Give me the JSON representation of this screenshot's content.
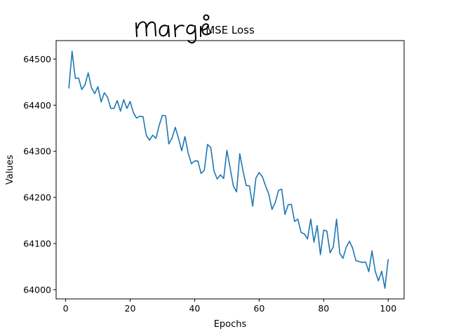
{
  "chart_data": {
    "type": "line",
    "title": "MSE Loss",
    "xlabel": "Epochs",
    "ylabel": "Values",
    "xlim": [
      -2.95,
      104.95
    ],
    "ylim": [
      63980,
      64540
    ],
    "xticks": [
      0,
      20,
      40,
      60,
      80,
      100
    ],
    "yticks": [
      64000,
      64100,
      64200,
      64300,
      64400,
      64500
    ],
    "grid": false,
    "series": [
      {
        "color": "#1f77b4",
        "x": [
          1,
          2,
          3,
          4,
          5,
          6,
          7,
          8,
          9,
          10,
          11,
          12,
          13,
          14,
          15,
          16,
          17,
          18,
          19,
          20,
          21,
          22,
          23,
          24,
          25,
          26,
          27,
          28,
          29,
          30,
          31,
          32,
          33,
          34,
          35,
          36,
          37,
          38,
          39,
          40,
          41,
          42,
          43,
          44,
          45,
          46,
          47,
          48,
          49,
          50,
          51,
          52,
          53,
          54,
          55,
          56,
          57,
          58,
          59,
          60,
          61,
          62,
          63,
          64,
          65,
          66,
          67,
          68,
          69,
          70,
          71,
          72,
          73,
          74,
          75,
          76,
          77,
          78,
          79,
          80,
          81,
          82,
          83,
          84,
          85,
          86,
          87,
          88,
          89,
          90,
          91,
          92,
          93,
          94,
          95,
          96,
          97,
          98,
          99,
          100
        ],
        "values": [
          64437,
          64517,
          64458,
          64459,
          64434,
          64444,
          64470,
          64438,
          64425,
          64440,
          64407,
          64427,
          64417,
          64393,
          64393,
          64410,
          64387,
          64412,
          64393,
          64408,
          64384,
          64372,
          64376,
          64375,
          64335,
          64324,
          64335,
          64328,
          64356,
          64378,
          64377,
          64316,
          64329,
          64352,
          64328,
          64301,
          64332,
          64296,
          64273,
          64279,
          64279,
          64252,
          64259,
          64315,
          64308,
          64257,
          64240,
          64249,
          64241,
          64302,
          64264,
          64225,
          64212,
          64295,
          64257,
          64226,
          64225,
          64181,
          64242,
          64254,
          64245,
          64225,
          64207,
          64174,
          64189,
          64215,
          64218,
          64163,
          64184,
          64185,
          64148,
          64153,
          64124,
          64121,
          64110,
          64153,
          64103,
          64139,
          64076,
          64129,
          64127,
          64080,
          64093,
          64153,
          64079,
          64068,
          64092,
          64105,
          64090,
          64063,
          64061,
          64059,
          64060,
          64039,
          64084,
          64040,
          64019,
          64040,
          64003,
          64065
        ]
      }
    ]
  },
  "annotation": {
    "handwriting": "margie"
  }
}
